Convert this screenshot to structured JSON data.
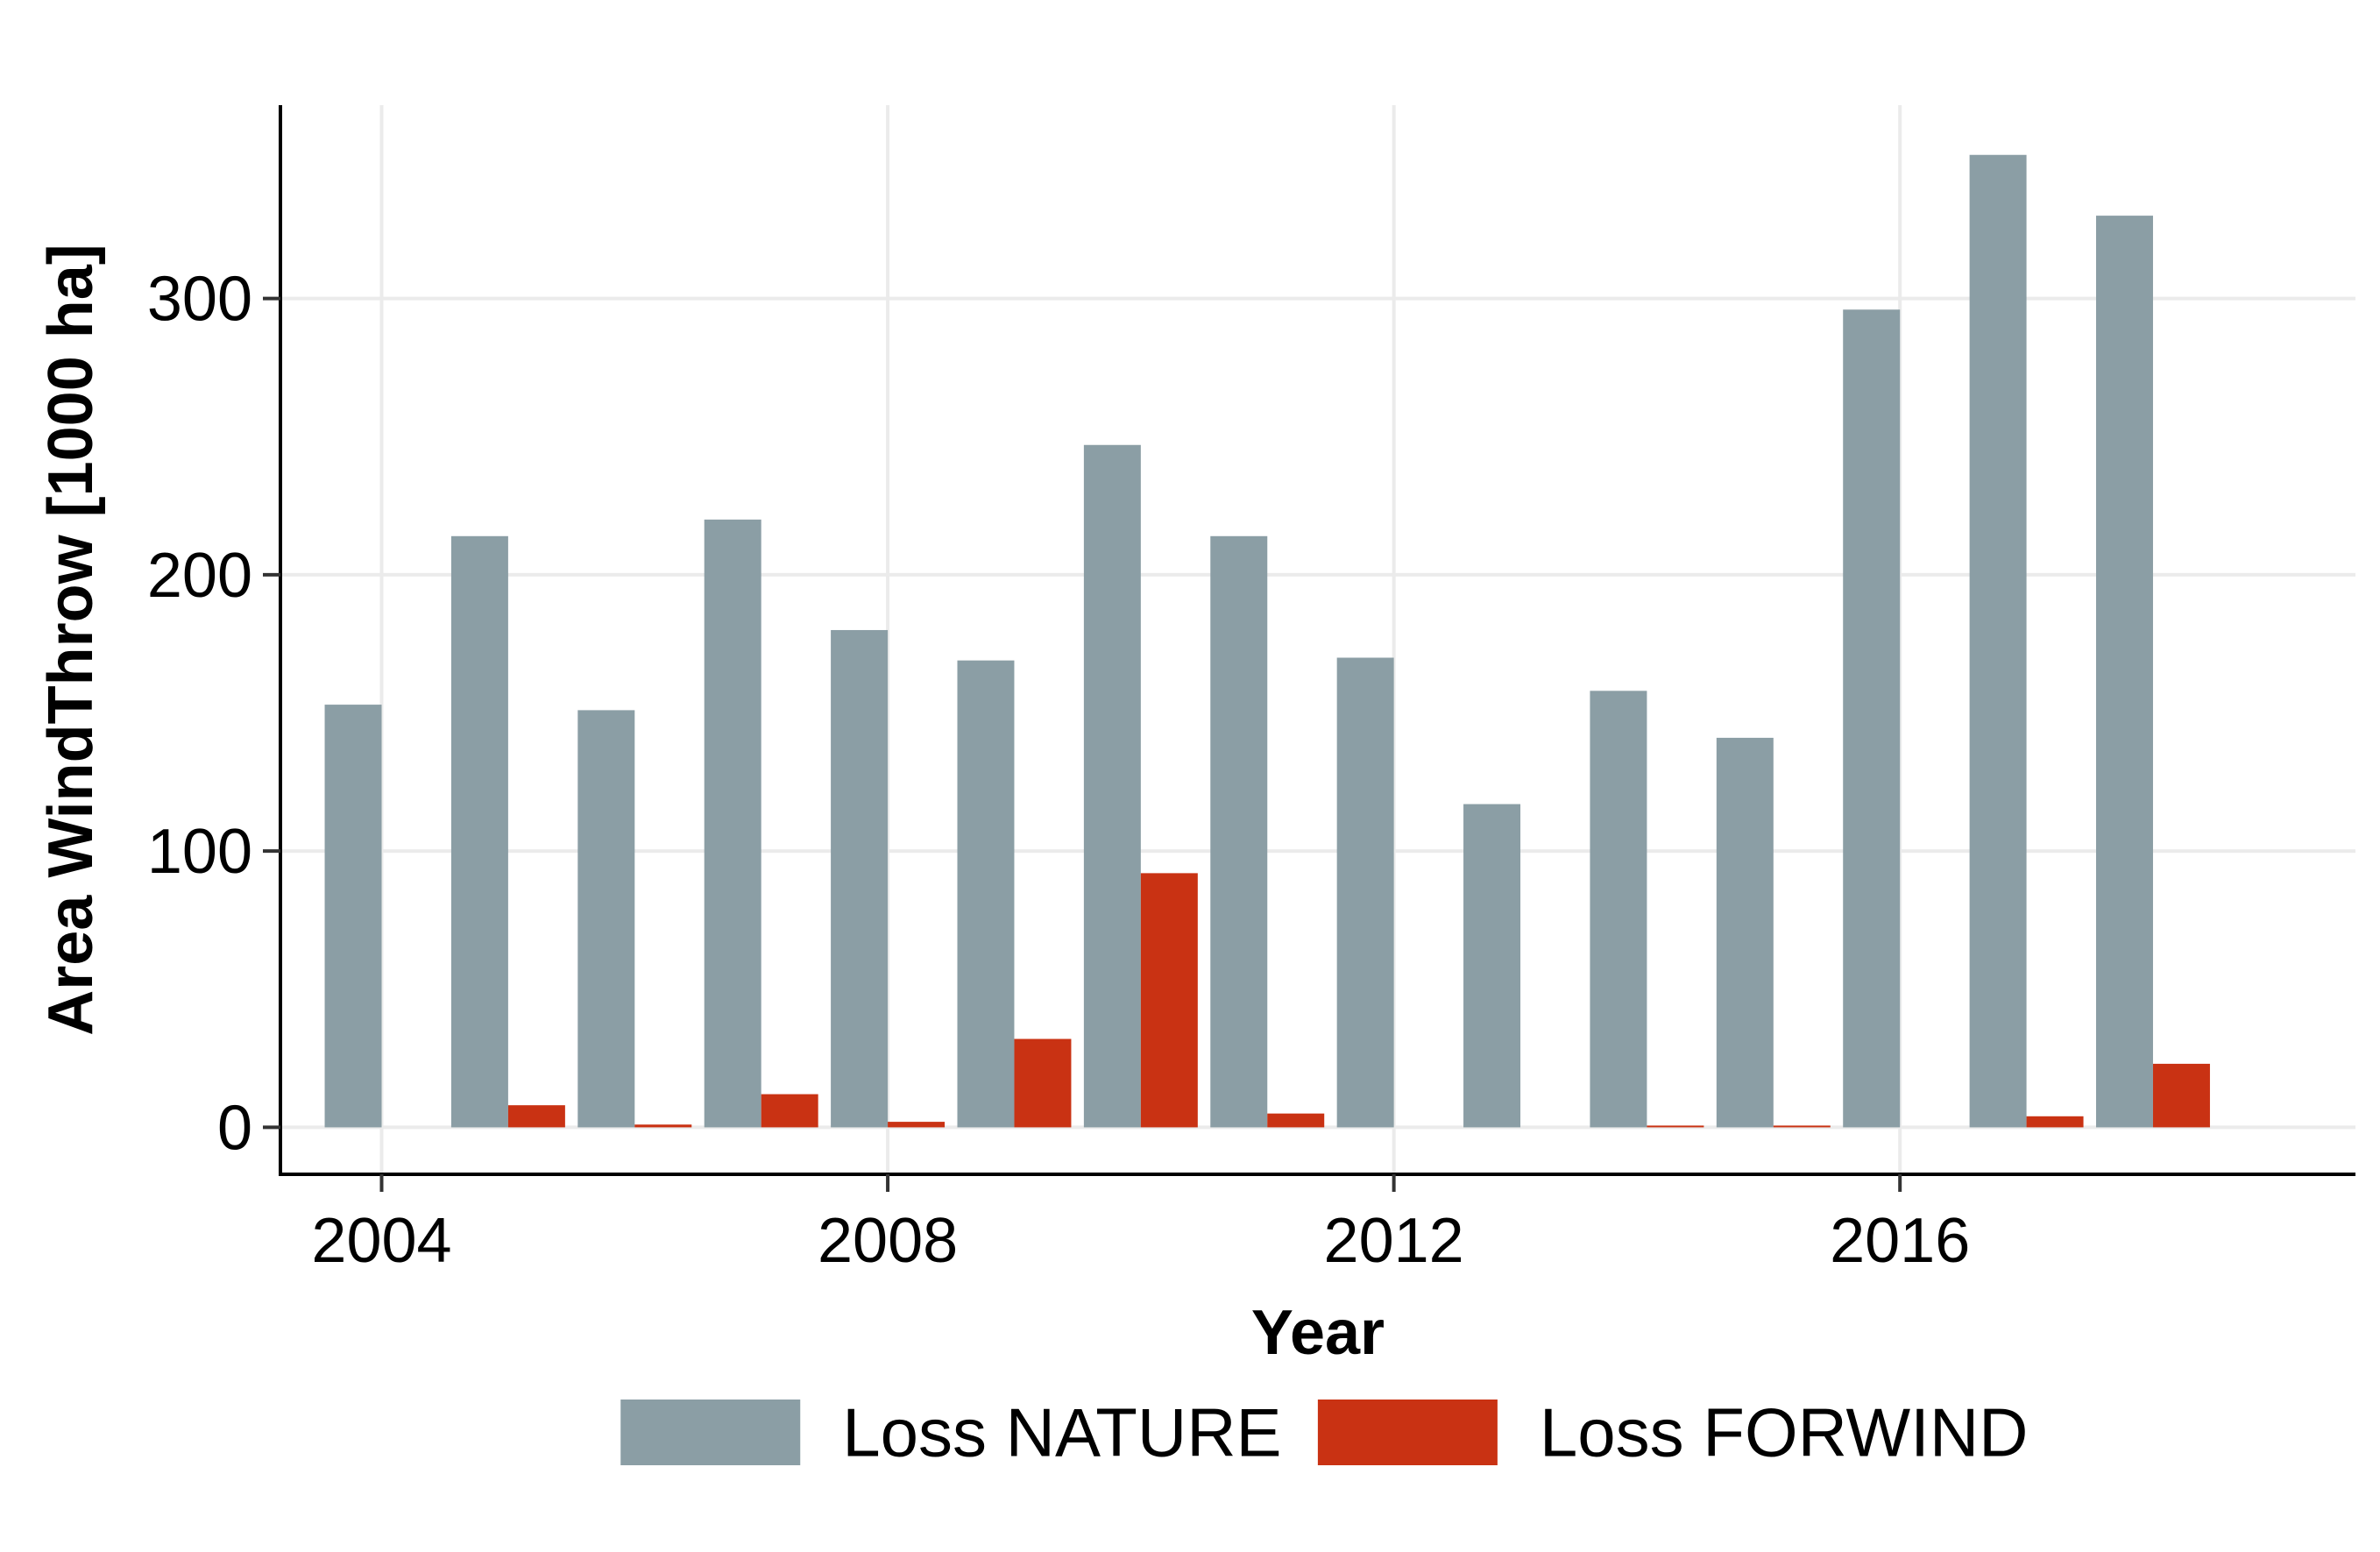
{
  "chart_data": {
    "type": "bar",
    "title": "",
    "xlabel": "Year",
    "ylabel": "Area WindThrow [1000 ha]",
    "x": [
      2004,
      2005,
      2006,
      2007,
      2008,
      2009,
      2010,
      2011,
      2012,
      2013,
      2014,
      2015,
      2016,
      2017,
      2018
    ],
    "xlim": [
      2003.2,
      2019.6
    ],
    "ylim": [
      -17,
      370
    ],
    "x_ticks": [
      "2004",
      "2008",
      "2012",
      "2016"
    ],
    "y_ticks": [
      "0",
      "100",
      "200",
      "300"
    ],
    "grid": true,
    "legend_position": "bottom",
    "series": [
      {
        "name": "Loss NATURE",
        "color": "#8b9ea5",
        "values": [
          153,
          214,
          151,
          220,
          180,
          169,
          247,
          214,
          170,
          117,
          158,
          141,
          296,
          352,
          330
        ]
      },
      {
        "name": "Loss FORWIND",
        "color": "#c93213",
        "values": [
          0,
          8,
          1,
          12,
          2,
          32,
          92,
          5,
          0,
          0,
          0.4,
          0.3,
          0,
          4,
          23
        ]
      }
    ]
  }
}
